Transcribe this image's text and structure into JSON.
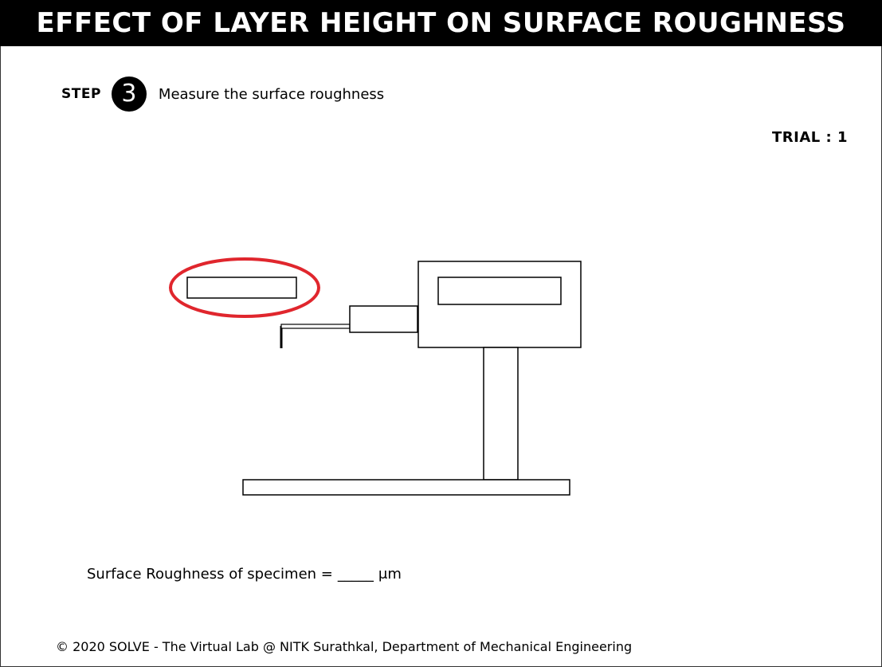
{
  "header": {
    "title": "EFFECT OF LAYER HEIGHT ON SURFACE ROUGHNESS"
  },
  "step": {
    "label": "STEP",
    "number": "3",
    "instruction": "Measure the surface roughness"
  },
  "trial": {
    "text": "TRIAL : 1"
  },
  "apparatus": {
    "highlight_color": "#e0262d",
    "line_color": "#000000",
    "icons": [
      "specimen-sample",
      "roughness-tester-body",
      "display-screen",
      "probe-arm",
      "stylus-tip",
      "stand-column",
      "base-plate"
    ]
  },
  "result": {
    "prefix": "Surface Roughness of specimen =",
    "value": "_____",
    "unit": "μm"
  },
  "footer": {
    "text": "© 2020 SOLVE - The Virtual Lab @ NITK Surathkal, Department of Mechanical Engineering"
  }
}
